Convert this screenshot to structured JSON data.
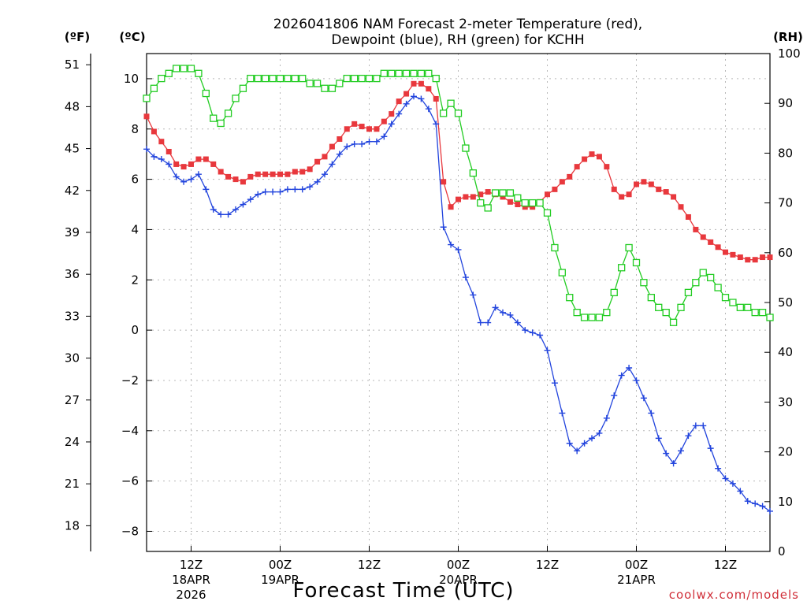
{
  "chart_data": {
    "type": "line",
    "title_line1": "2026041806 NAM Forecast 2-meter Temperature (red),",
    "title_line2": "Dewpoint (blue), RH (green) for KCHH",
    "xlabel": "Forecast Time (UTC)",
    "credit": "coolwx.com/models",
    "unit_f": "(ºF)",
    "unit_c": "(ºC)",
    "unit_rh": "(RH)",
    "x_range_hours": [
      0,
      84
    ],
    "ylim_c": [
      -8.8,
      11
    ],
    "ylim_rh": [
      0,
      100
    ],
    "f_ticks": [
      "18",
      "21",
      "24",
      "27",
      "30",
      "33",
      "36",
      "39",
      "42",
      "45",
      "48",
      "51"
    ],
    "c_ticks": [
      "−8",
      "−6",
      "−4",
      "−2",
      "0",
      "2",
      "4",
      "6",
      "8",
      "10"
    ],
    "rh_ticks": [
      "0",
      "10",
      "20",
      "30",
      "40",
      "50",
      "60",
      "70",
      "80",
      "90",
      "100"
    ],
    "x_ticks": [
      {
        "hour": 6,
        "label": "12Z",
        "sub1": "18APR",
        "sub2": "2026"
      },
      {
        "hour": 18,
        "label": "00Z",
        "sub1": "19APR",
        "sub2": ""
      },
      {
        "hour": 30,
        "label": "12Z",
        "sub1": "",
        "sub2": ""
      },
      {
        "hour": 42,
        "label": "00Z",
        "sub1": "20APR",
        "sub2": ""
      },
      {
        "hour": 54,
        "label": "12Z",
        "sub1": "",
        "sub2": ""
      },
      {
        "hour": 66,
        "label": "00Z",
        "sub1": "21APR",
        "sub2": ""
      },
      {
        "hour": 78,
        "label": "12Z",
        "sub1": "",
        "sub2": ""
      }
    ],
    "series": [
      {
        "name": "Temperature",
        "color": "#e8383d",
        "units": "C",
        "marker": "square-filled",
        "values": [
          8.5,
          7.9,
          7.5,
          7.1,
          6.6,
          6.5,
          6.6,
          6.8,
          6.8,
          6.6,
          6.3,
          6.1,
          6.0,
          5.9,
          6.1,
          6.2,
          6.2,
          6.2,
          6.2,
          6.2,
          6.3,
          6.3,
          6.4,
          6.7,
          6.9,
          7.3,
          7.6,
          8.0,
          8.2,
          8.1,
          8.0,
          8.0,
          8.3,
          8.6,
          9.1,
          9.4,
          9.8,
          9.8,
          9.6,
          9.2,
          5.9,
          4.9,
          5.2,
          5.3,
          5.3,
          5.4,
          5.5,
          5.4,
          5.3,
          5.1,
          5.0,
          4.9,
          4.9,
          5.1,
          5.4,
          5.6,
          5.9,
          6.1,
          6.5,
          6.8,
          7.0,
          6.9,
          6.5,
          5.6,
          5.3,
          5.4,
          5.8,
          5.9,
          5.8,
          5.6,
          5.5,
          5.3,
          4.9,
          4.5,
          4.0,
          3.7,
          3.5,
          3.3,
          3.1,
          3.0,
          2.9,
          2.8,
          2.8,
          2.9,
          2.9
        ]
      },
      {
        "name": "Dewpoint",
        "color": "#2244dd",
        "units": "C",
        "marker": "plus",
        "values": [
          7.2,
          6.9,
          6.8,
          6.6,
          6.1,
          5.9,
          6.0,
          6.2,
          5.6,
          4.8,
          4.6,
          4.6,
          4.8,
          5.0,
          5.2,
          5.4,
          5.5,
          5.5,
          5.5,
          5.6,
          5.6,
          5.6,
          5.7,
          5.9,
          6.2,
          6.6,
          7.0,
          7.3,
          7.4,
          7.4,
          7.5,
          7.5,
          7.7,
          8.2,
          8.6,
          9.0,
          9.3,
          9.2,
          8.8,
          8.2,
          4.1,
          3.4,
          3.2,
          2.1,
          1.4,
          0.3,
          0.3,
          0.9,
          0.7,
          0.6,
          0.3,
          0.0,
          -0.1,
          -0.2,
          -0.8,
          -2.1,
          -3.3,
          -4.5,
          -4.8,
          -4.5,
          -4.3,
          -4.1,
          -3.5,
          -2.6,
          -1.8,
          -1.5,
          -2.0,
          -2.7,
          -3.3,
          -4.3,
          -4.9,
          -5.3,
          -4.8,
          -4.2,
          -3.8,
          -3.8,
          -4.7,
          -5.5,
          -5.9,
          -6.1,
          -6.4,
          -6.8,
          -6.9,
          -7.0,
          -7.2
        ]
      },
      {
        "name": "RH",
        "color": "#22cc22",
        "units": "%",
        "marker": "square-open",
        "values": [
          91,
          93,
          95,
          96,
          97,
          97,
          97,
          96,
          92,
          87,
          86,
          88,
          91,
          93,
          95,
          95,
          95,
          95,
          95,
          95,
          95,
          95,
          94,
          94,
          93,
          93,
          94,
          95,
          95,
          95,
          95,
          95,
          96,
          96,
          96,
          96,
          96,
          96,
          96,
          95,
          88,
          90,
          88,
          81,
          76,
          70,
          69,
          72,
          72,
          72,
          71,
          70,
          70,
          70,
          68,
          61,
          56,
          51,
          48,
          47,
          47,
          47,
          48,
          52,
          57,
          61,
          58,
          54,
          51,
          49,
          48,
          46,
          49,
          52,
          54,
          56,
          55,
          53,
          51,
          50,
          49,
          49,
          48,
          48,
          47
        ]
      }
    ]
  }
}
